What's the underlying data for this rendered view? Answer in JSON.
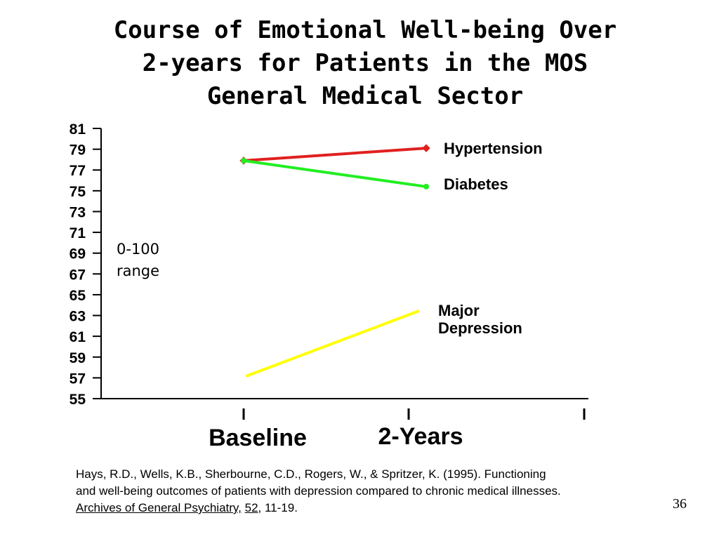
{
  "slide": {
    "title_lines": [
      "Course of Emotional Well-being Over",
      "2-years for Patients in the MOS",
      "General Medical Sector"
    ],
    "range_note_lines": [
      "0-100",
      "range"
    ],
    "citation": {
      "line1": "Hays, R.D., Wells, K.B., Sherbourne, C.D., Rogers, W., & Spritzer, K. (1995). Functioning",
      "line2": "and well-being outcomes of patients with depression compared to chronic medical illnesses.",
      "journal": "Archives of General Psychiatry,",
      "gap1": " ",
      "volume": "52",
      "pages": ", 11-19."
    },
    "page_number": "36"
  },
  "chart_data": {
    "type": "line",
    "x_categories": [
      "",
      "Baseline",
      "2-Years",
      ""
    ],
    "ylim": [
      55,
      81
    ],
    "y_ticks": [
      81,
      79,
      77,
      75,
      73,
      71,
      69,
      67,
      65,
      63,
      61,
      59,
      57,
      55
    ],
    "series": [
      {
        "name": "Hypertension",
        "color": "#e02020",
        "marker": "diamond",
        "points": [
          {
            "x": "Baseline",
            "y": 77.9
          },
          {
            "x": "2-Years",
            "y": 79.1
          }
        ]
      },
      {
        "name": "Diabetes",
        "color": "#22ee22",
        "marker": "circle",
        "points": [
          {
            "x": "Baseline",
            "y": 77.9
          },
          {
            "x": "2-Years",
            "y": 75.4
          }
        ]
      },
      {
        "name": "Major Depression",
        "color": "#ffff00",
        "marker": "none",
        "points": [
          {
            "x": "Baseline",
            "y": 57.2
          },
          {
            "x": "2-Years",
            "y": 63.4
          }
        ]
      }
    ]
  }
}
